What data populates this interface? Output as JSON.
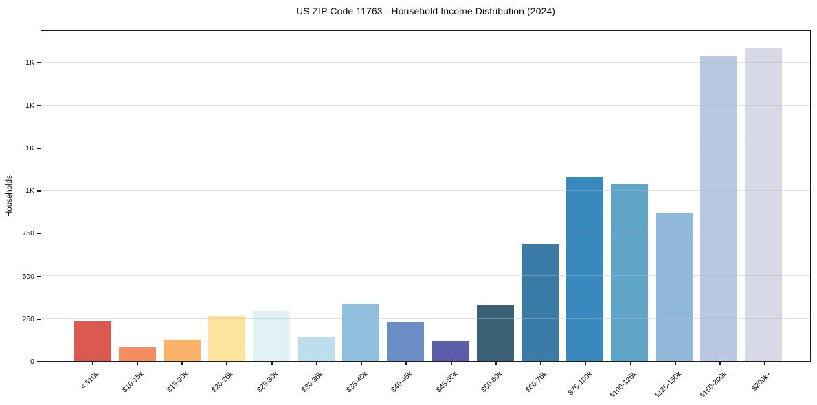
{
  "chart_data": {
    "type": "bar",
    "title": "US ZIP Code 11763 - Household Income Distribution (2024)",
    "xlabel": "",
    "ylabel": "Households",
    "categories": [
      "< $10k",
      "$10-15k",
      "$15-20k",
      "$20-25k",
      "$25-30k",
      "$30-35k",
      "$35-40k",
      "$40-45k",
      "$45-50k",
      "$50-60k",
      "$60-75k",
      "$75-100k",
      "$100-125k",
      "$125-150k",
      "$150-200k",
      "$200k+"
    ],
    "values": [
      235,
      80,
      125,
      265,
      295,
      140,
      335,
      230,
      118,
      325,
      685,
      1080,
      1040,
      870,
      1790,
      1840
    ],
    "bar_colors": [
      "#da5a52",
      "#f68d61",
      "#fab169",
      "#fde49e",
      "#e2f1f6",
      "#bedeed",
      "#8ec0dd",
      "#6b8dc6",
      "#5c5daa",
      "#3a6073",
      "#3a7ca5",
      "#388abe",
      "#5fa5c8",
      "#91b9d7",
      "#b8c9e1",
      "#d7d9e7"
    ],
    "ylim": [
      0,
      1940
    ],
    "yticks": [
      {
        "value": 0,
        "label": "0"
      },
      {
        "value": 250,
        "label": "250"
      },
      {
        "value": 500,
        "label": "500"
      },
      {
        "value": 750,
        "label": "750"
      },
      {
        "value": 1000,
        "label": "1K"
      },
      {
        "value": 1250,
        "label": "1K"
      },
      {
        "value": 1500,
        "label": "1K"
      },
      {
        "value": 1750,
        "label": "1K"
      }
    ],
    "grid": "horizontal",
    "legend": "none"
  }
}
